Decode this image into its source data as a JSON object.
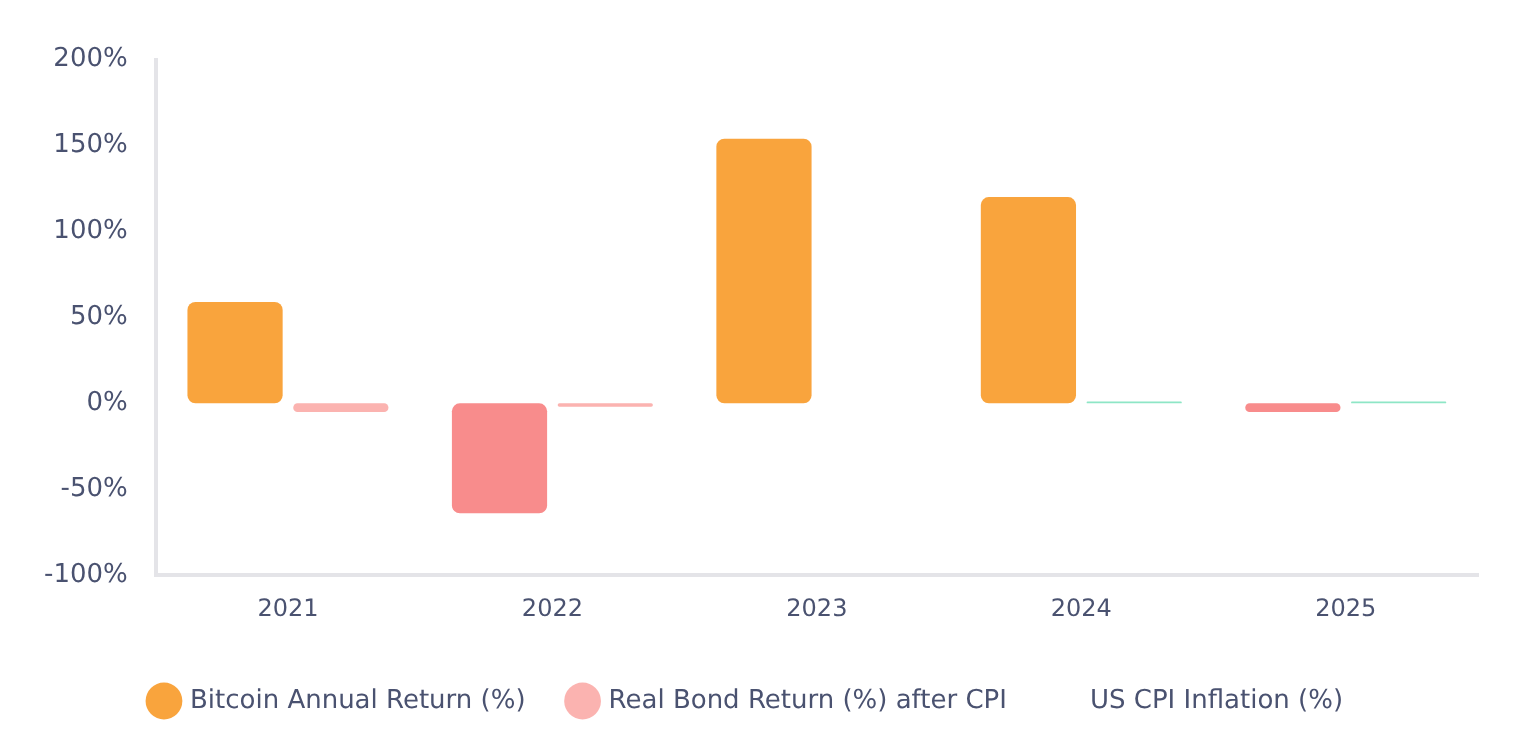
{
  "chart_data": {
    "type": "bar",
    "categories": [
      "2021",
      "2022",
      "2023",
      "2024",
      "2025"
    ],
    "series": [
      {
        "name": "Bitcoin Annual Return (%)",
        "color": "#f9a43d",
        "colors": [
          "#f9a43d",
          "#f88c8c",
          "#f9a43d",
          "#f9a43d",
          "#f88c8c"
        ],
        "values": [
          59,
          -64,
          154,
          120,
          -5
        ]
      },
      {
        "name": "Real Bond Return (%) after CPI",
        "color": "#fbb3b0",
        "colors": [
          "#fbb3b0",
          "#fbb3b0",
          "#fbb3b0",
          "#8ee6c6",
          "#8ee6c6"
        ],
        "values": [
          -5,
          -2,
          null,
          1,
          1
        ]
      },
      {
        "name": "US CPI Inflation (%)",
        "values": [
          null,
          null,
          null,
          null,
          null
        ]
      }
    ],
    "ylim": [
      -100,
      200
    ],
    "yticks": [
      {
        "value": -100,
        "label": "-100%"
      },
      {
        "value": -50,
        "label": "-50%"
      },
      {
        "value": 0,
        "label": "0%"
      },
      {
        "value": 50,
        "label": "50%"
      },
      {
        "value": 100,
        "label": "100%"
      },
      {
        "value": 150,
        "label": "150%"
      },
      {
        "value": 200,
        "label": "200%"
      }
    ],
    "grid": false,
    "legend": "bottom"
  }
}
